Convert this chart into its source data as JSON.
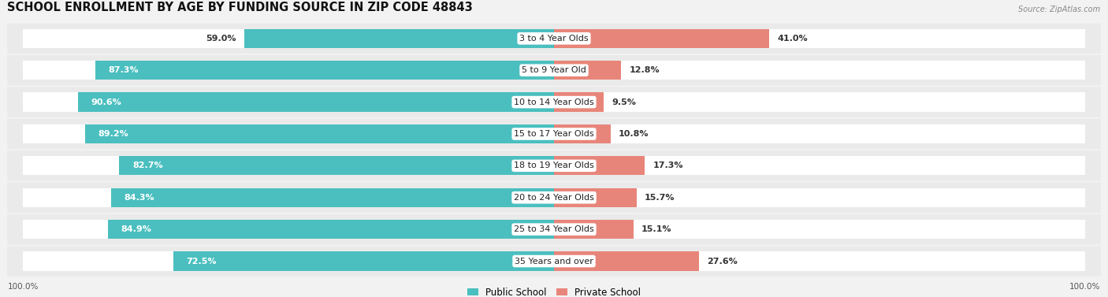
{
  "title": "SCHOOL ENROLLMENT BY AGE BY FUNDING SOURCE IN ZIP CODE 48843",
  "source": "Source: ZipAtlas.com",
  "categories": [
    "3 to 4 Year Olds",
    "5 to 9 Year Old",
    "10 to 14 Year Olds",
    "15 to 17 Year Olds",
    "18 to 19 Year Olds",
    "20 to 24 Year Olds",
    "25 to 34 Year Olds",
    "35 Years and over"
  ],
  "public_values": [
    59.0,
    87.3,
    90.6,
    89.2,
    82.7,
    84.3,
    84.9,
    72.5
  ],
  "private_values": [
    41.0,
    12.8,
    9.5,
    10.8,
    17.3,
    15.7,
    15.1,
    27.6
  ],
  "public_color": "#4BBFBF",
  "private_color": "#E8857A",
  "public_label": "Public School",
  "private_label": "Private School",
  "label_fontsize": 8.0,
  "title_fontsize": 10.5,
  "axis_label_fontsize": 7.5,
  "legend_fontsize": 8.5
}
